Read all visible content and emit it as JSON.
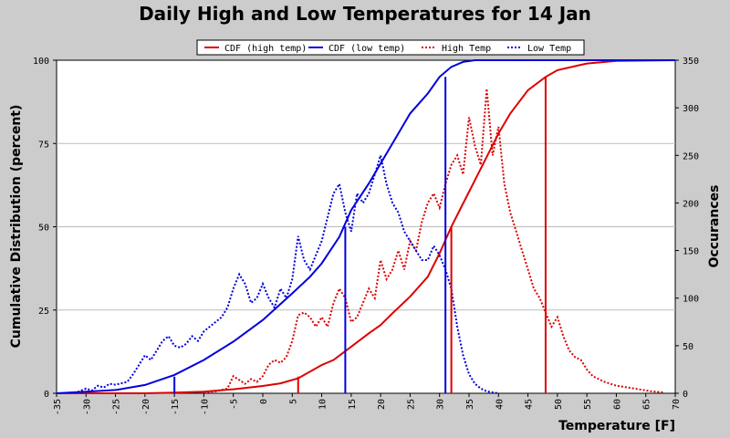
{
  "chart_data": {
    "type": "line",
    "title": "Daily High and Low Temperatures for 14 Jan",
    "xlabel": "Temperature [F]",
    "ylabel": "Cumulative Distribution (percent)",
    "y2label": "Occurances",
    "xlim": [
      -35,
      70
    ],
    "ylim": [
      0,
      100
    ],
    "y2lim": [
      0,
      350
    ],
    "x_ticks": [
      -35,
      -30,
      -25,
      -20,
      -15,
      -10,
      -5,
      0,
      5,
      10,
      15,
      20,
      25,
      30,
      35,
      40,
      45,
      50,
      55,
      60,
      65,
      70
    ],
    "y_ticks": [
      0,
      25,
      50,
      75,
      100
    ],
    "y2_ticks": [
      0,
      50,
      100,
      150,
      200,
      250,
      300,
      350
    ],
    "grid": "horizontal",
    "legend_position": "top",
    "legend": [
      "CDF (high temp)",
      "CDF (low temp)",
      "High Temp",
      "Low Temp"
    ],
    "colors": {
      "high": "#dd0000",
      "low": "#0000dd"
    },
    "series": [
      {
        "name": "CDF (high temp)",
        "axis": "left",
        "style": "solid",
        "color": "#dd0000",
        "points": [
          [
            -35,
            0
          ],
          [
            -20,
            0
          ],
          [
            -15,
            0.2
          ],
          [
            -10,
            0.5
          ],
          [
            -5,
            1.2
          ],
          [
            0,
            2.2
          ],
          [
            3,
            3
          ],
          [
            6,
            4.5
          ],
          [
            10,
            8.5
          ],
          [
            12,
            10
          ],
          [
            15,
            14
          ],
          [
            18,
            18
          ],
          [
            20,
            20.5
          ],
          [
            22,
            24
          ],
          [
            25,
            29
          ],
          [
            28,
            35
          ],
          [
            30,
            42
          ],
          [
            32,
            50
          ],
          [
            34,
            57
          ],
          [
            36,
            64
          ],
          [
            38,
            71
          ],
          [
            40,
            78
          ],
          [
            42,
            84
          ],
          [
            45,
            91
          ],
          [
            48,
            95
          ],
          [
            50,
            97
          ],
          [
            55,
            99
          ],
          [
            60,
            99.8
          ],
          [
            70,
            100
          ]
        ]
      },
      {
        "name": "CDF (low temp)",
        "axis": "left",
        "style": "solid",
        "color": "#0000dd",
        "points": [
          [
            -35,
            0
          ],
          [
            -30,
            0.5
          ],
          [
            -25,
            1
          ],
          [
            -20,
            2.5
          ],
          [
            -15,
            5.5
          ],
          [
            -10,
            10
          ],
          [
            -5,
            15.5
          ],
          [
            0,
            22
          ],
          [
            5,
            30
          ],
          [
            8,
            35
          ],
          [
            10,
            39
          ],
          [
            13,
            47
          ],
          [
            15,
            55
          ],
          [
            18,
            63
          ],
          [
            20,
            69
          ],
          [
            22,
            75
          ],
          [
            25,
            84
          ],
          [
            28,
            90
          ],
          [
            30,
            95
          ],
          [
            32,
            98
          ],
          [
            34,
            99.5
          ],
          [
            36,
            100
          ],
          [
            40,
            100
          ],
          [
            70,
            100
          ]
        ]
      },
      {
        "name": "High Temp",
        "axis": "right",
        "style": "dotted",
        "color": "#dd0000",
        "points": [
          [
            -10,
            1
          ],
          [
            -8,
            2
          ],
          [
            -6,
            5
          ],
          [
            -5,
            18
          ],
          [
            -4,
            14
          ],
          [
            -3,
            10
          ],
          [
            -2,
            15
          ],
          [
            -1,
            12
          ],
          [
            0,
            18
          ],
          [
            1,
            30
          ],
          [
            2,
            35
          ],
          [
            3,
            32
          ],
          [
            4,
            38
          ],
          [
            5,
            55
          ],
          [
            6,
            82
          ],
          [
            7,
            85
          ],
          [
            8,
            80
          ],
          [
            9,
            70
          ],
          [
            10,
            80
          ],
          [
            11,
            70
          ],
          [
            12,
            95
          ],
          [
            13,
            110
          ],
          [
            14,
            100
          ],
          [
            15,
            75
          ],
          [
            16,
            80
          ],
          [
            17,
            95
          ],
          [
            18,
            110
          ],
          [
            19,
            100
          ],
          [
            20,
            140
          ],
          [
            21,
            120
          ],
          [
            22,
            130
          ],
          [
            23,
            150
          ],
          [
            24,
            130
          ],
          [
            25,
            160
          ],
          [
            26,
            150
          ],
          [
            27,
            180
          ],
          [
            28,
            200
          ],
          [
            29,
            210
          ],
          [
            30,
            195
          ],
          [
            31,
            220
          ],
          [
            32,
            240
          ],
          [
            33,
            250
          ],
          [
            34,
            230
          ],
          [
            35,
            290
          ],
          [
            36,
            260
          ],
          [
            37,
            240
          ],
          [
            38,
            320
          ],
          [
            39,
            250
          ],
          [
            40,
            280
          ],
          [
            41,
            220
          ],
          [
            42,
            190
          ],
          [
            43,
            170
          ],
          [
            44,
            150
          ],
          [
            45,
            130
          ],
          [
            46,
            110
          ],
          [
            47,
            100
          ],
          [
            48,
            85
          ],
          [
            49,
            70
          ],
          [
            50,
            80
          ],
          [
            51,
            60
          ],
          [
            52,
            45
          ],
          [
            53,
            38
          ],
          [
            54,
            35
          ],
          [
            55,
            25
          ],
          [
            56,
            18
          ],
          [
            57,
            15
          ],
          [
            58,
            12
          ],
          [
            60,
            8
          ],
          [
            62,
            6
          ],
          [
            64,
            4
          ],
          [
            66,
            2
          ],
          [
            68,
            1
          ]
        ]
      },
      {
        "name": "Low Temp",
        "axis": "right",
        "style": "dotted",
        "color": "#0000dd",
        "points": [
          [
            -32,
            0
          ],
          [
            -30,
            5
          ],
          [
            -29,
            3
          ],
          [
            -28,
            8
          ],
          [
            -27,
            6
          ],
          [
            -26,
            10
          ],
          [
            -25,
            9
          ],
          [
            -23,
            12
          ],
          [
            -22,
            20
          ],
          [
            -21,
            30
          ],
          [
            -20,
            40
          ],
          [
            -19,
            35
          ],
          [
            -18,
            45
          ],
          [
            -17,
            55
          ],
          [
            -16,
            60
          ],
          [
            -15,
            50
          ],
          [
            -14,
            48
          ],
          [
            -13,
            52
          ],
          [
            -12,
            60
          ],
          [
            -11,
            55
          ],
          [
            -10,
            65
          ],
          [
            -9,
            70
          ],
          [
            -8,
            75
          ],
          [
            -7,
            80
          ],
          [
            -6,
            90
          ],
          [
            -5,
            110
          ],
          [
            -4,
            125
          ],
          [
            -3,
            115
          ],
          [
            -2,
            95
          ],
          [
            -1,
            100
          ],
          [
            0,
            115
          ],
          [
            1,
            100
          ],
          [
            2,
            90
          ],
          [
            3,
            110
          ],
          [
            4,
            100
          ],
          [
            5,
            120
          ],
          [
            6,
            165
          ],
          [
            7,
            140
          ],
          [
            8,
            130
          ],
          [
            9,
            145
          ],
          [
            10,
            160
          ],
          [
            11,
            185
          ],
          [
            12,
            210
          ],
          [
            13,
            220
          ],
          [
            14,
            190
          ],
          [
            15,
            170
          ],
          [
            16,
            210
          ],
          [
            17,
            200
          ],
          [
            18,
            210
          ],
          [
            19,
            230
          ],
          [
            20,
            250
          ],
          [
            21,
            220
          ],
          [
            22,
            200
          ],
          [
            23,
            190
          ],
          [
            24,
            170
          ],
          [
            25,
            160
          ],
          [
            26,
            150
          ],
          [
            27,
            140
          ],
          [
            28,
            140
          ],
          [
            29,
            155
          ],
          [
            30,
            145
          ],
          [
            31,
            130
          ],
          [
            32,
            110
          ],
          [
            33,
            70
          ],
          [
            34,
            40
          ],
          [
            35,
            20
          ],
          [
            36,
            10
          ],
          [
            37,
            5
          ],
          [
            38,
            2
          ],
          [
            39,
            1
          ],
          [
            40,
            0
          ]
        ]
      }
    ],
    "vertical_markers": [
      {
        "color": "#dd0000",
        "x": 6,
        "cdf": 5
      },
      {
        "color": "#dd0000",
        "x": 32,
        "cdf": 50
      },
      {
        "color": "#dd0000",
        "x": 48,
        "cdf": 95
      },
      {
        "color": "#0000dd",
        "x": -15,
        "cdf": 5
      },
      {
        "color": "#0000dd",
        "x": 14,
        "cdf": 50
      },
      {
        "color": "#0000dd",
        "x": 31,
        "cdf": 95
      }
    ]
  }
}
